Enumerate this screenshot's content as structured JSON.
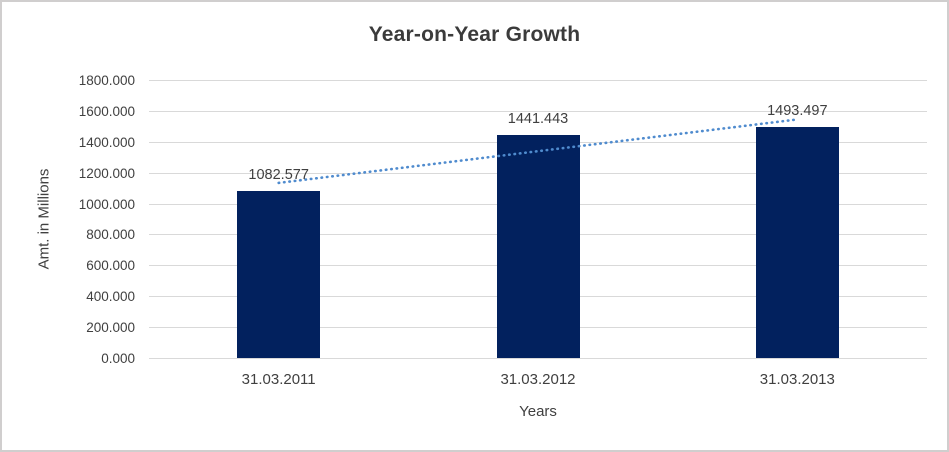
{
  "window": {
    "background": "#ffffff",
    "border_color": "#d0cece"
  },
  "chart_data": {
    "type": "bar",
    "title": "Year-on-Year Growth",
    "categories": [
      "31.03.2011",
      "31.03.2012",
      "31.03.2013"
    ],
    "values": [
      1082.577,
      1441.443,
      1493.497
    ],
    "data_labels": [
      "1082.577",
      "1441.443",
      "1493.497"
    ],
    "xlabel": "Years",
    "ylabel": "Amt. in Millions",
    "ylim": [
      0,
      1800
    ],
    "y_tick_step": 200,
    "y_tick_labels": [
      "0.000",
      "200.000",
      "400.000",
      "600.000",
      "800.000",
      "1000.000",
      "1200.000",
      "1400.000",
      "1600.000",
      "1800.000"
    ],
    "grid": true,
    "legend": "none",
    "trendline": {
      "type": "linear",
      "style": "dotted"
    },
    "colors": {
      "bar": "#02215e",
      "trendline": "#4f8bce",
      "gridline": "#d9d9d9",
      "axis_text": "#404040",
      "title_text": "#3b3b3b",
      "label_text": "#404040"
    }
  }
}
